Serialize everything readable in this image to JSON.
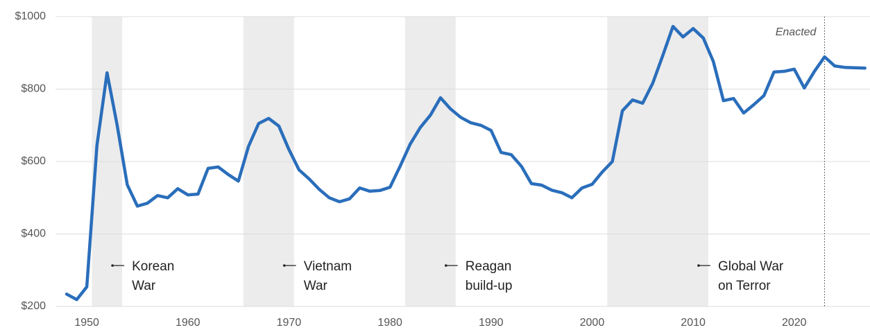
{
  "chart_data": {
    "type": "line",
    "x": [
      1948,
      1949,
      1950,
      1951,
      1952,
      1953,
      1954,
      1955,
      1956,
      1957,
      1958,
      1959,
      1960,
      1961,
      1962,
      1963,
      1964,
      1965,
      1966,
      1967,
      1968,
      1969,
      1970,
      1971,
      1972,
      1973,
      1974,
      1975,
      1976,
      1977,
      1978,
      1979,
      1980,
      1981,
      1982,
      1983,
      1984,
      1985,
      1986,
      1987,
      1988,
      1989,
      1990,
      1991,
      1992,
      1993,
      1994,
      1995,
      1996,
      1997,
      1998,
      1999,
      2000,
      2001,
      2002,
      2003,
      2004,
      2005,
      2006,
      2007,
      2008,
      2009,
      2010,
      2011,
      2012,
      2013,
      2014,
      2015,
      2016,
      2017,
      2018,
      2019,
      2020,
      2021,
      2022,
      2023,
      2024,
      2025,
      2026,
      2027
    ],
    "series": [
      {
        "color": "#2a6ebb",
        "values": [
          234,
          219,
          254,
          644,
          845,
          701,
          536,
          477,
          485,
          506,
          500,
          525,
          508,
          510,
          581,
          585,
          564,
          546,
          642,
          705,
          719,
          698,
          633,
          577,
          552,
          523,
          500,
          489,
          497,
          527,
          518,
          520,
          529,
          587,
          648,
          694,
          728,
          776,
          745,
          722,
          707,
          700,
          686,
          625,
          619,
          587,
          539,
          535,
          521,
          514,
          500,
          527,
          537,
          571,
          600,
          740,
          770,
          761,
          816,
          893,
          973,
          944,
          967,
          941,
          876,
          768,
          774,
          734,
          757,
          782,
          847,
          849,
          855,
          803,
          849,
          889,
          864,
          860,
          859,
          858
        ]
      }
    ],
    "xlim": [
      1948,
      2027.5
    ],
    "xticks": [
      1950,
      1960,
      1970,
      1980,
      1990,
      2000,
      2010,
      2020
    ],
    "ylim": [
      200,
      1000
    ],
    "yticks": [
      {
        "value": 200,
        "label": "$200"
      },
      {
        "value": 400,
        "label": "$400"
      },
      {
        "value": 600,
        "label": "$600"
      },
      {
        "value": 800,
        "label": "$800"
      },
      {
        "value": 1000,
        "label": "$1000"
      }
    ],
    "grid": true,
    "shaded_periods": [
      {
        "start": 1950.5,
        "end": 1953.5,
        "label": [
          "Korean",
          "War"
        ]
      },
      {
        "start": 1965.5,
        "end": 1970.5,
        "label": [
          "Vietnam",
          "War"
        ]
      },
      {
        "start": 1981.5,
        "end": 1986.5,
        "label": [
          "Reagan",
          "build-up"
        ]
      },
      {
        "start": 2001.5,
        "end": 2011.5,
        "label": [
          "Global War",
          "on Terror"
        ]
      }
    ],
    "reference_line": {
      "x": 2023,
      "label": "Enacted"
    }
  }
}
